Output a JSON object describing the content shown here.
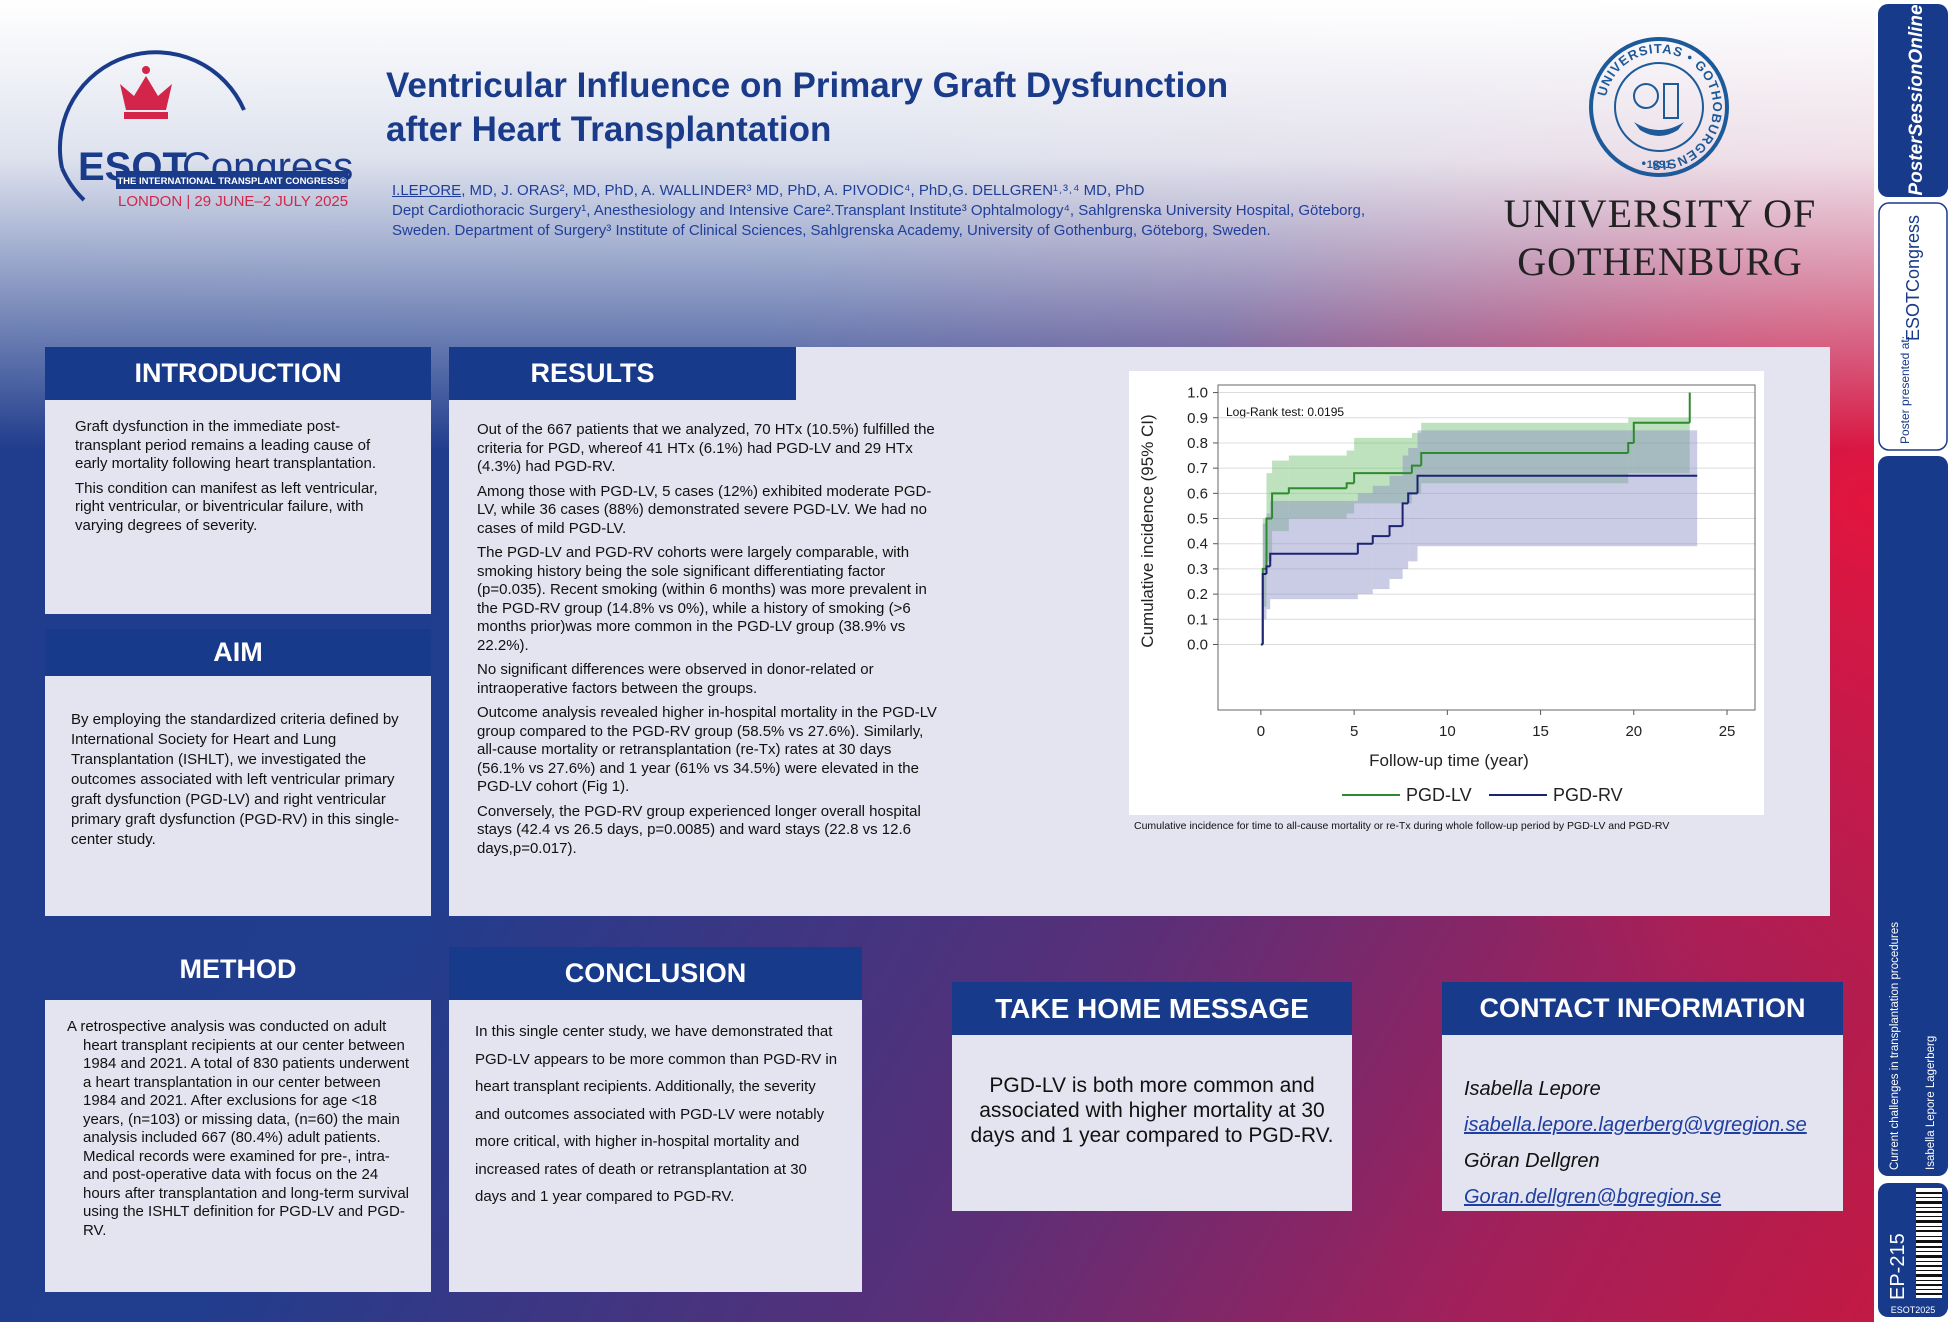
{
  "header": {
    "title_lines": [
      "Ventricular Influence on Primary Graft Dysfunction",
      "after Heart Transplantation"
    ],
    "author_first": "I.LEPORE",
    "authors_rest": ", MD, J. ORAS², MD, PhD, A. WALLINDER³ MD, PhD, A. PIVODIC⁴, PhD,G. DELLGREN¹˒³˒⁴ MD, PhD",
    "affiliations": [
      "Dept Cardiothoracic Surgery¹, Anesthesiology and Intensive Care².Transplant Institute³ Ophtalmology⁴, Sahlgrenska University Hospital, Göteborg,",
      "Sweden. Department of Surgery³ Institute of Clinical Sciences, Sahlgrenska Academy, University of Gothenburg, Göteborg, Sweden."
    ]
  },
  "esot_logo": {
    "esot": "ESOT",
    "congress": "Congress",
    "tagline": "THE INTERNATIONAL TRANSPLANT CONGRESS®",
    "location": "LONDON | 29 JUNE–2 JULY 2025"
  },
  "university": {
    "seal_text": "UNIVERSITAS • GOTHOBURGENSIS •",
    "seal_year": "1891",
    "name_lines": [
      "UNIVERSITY OF",
      "GOTHENBURG"
    ]
  },
  "introduction": {
    "title": "INTRODUCTION",
    "paragraphs": [
      "Graft dysfunction in the immediate post-transplant period remains a leading cause of early mortality following heart transplantation.",
      "This condition can manifest as left ventricular, right ventricular, or biventricular failure, with varying degrees of severity."
    ]
  },
  "aim": {
    "title": "AIM",
    "paragraphs": [
      "By employing the standardized criteria defined by International Society for Heart and Lung Transplantation (ISHLT), we investigated the outcomes associated with left ventricular primary graft dysfunction (PGD-LV) and right ventricular primary graft dysfunction (PGD-RV) in this single-center study."
    ]
  },
  "results": {
    "title": "RESULTS",
    "paragraphs": [
      "Out of the 667 patients that we analyzed, 70 HTx (10.5%) fulfilled the criteria for PGD, whereof 41 HTx (6.1%) had PGD-LV and 29 HTx (4.3%) had PGD-RV.",
      "Among those with PGD-LV, 5 cases (12%) exhibited moderate PGD-LV, while 36 cases (88%) demonstrated severe PGD-LV. We had no cases of mild PGD-LV.",
      "The PGD-LV and PGD-RV cohorts were largely comparable, with smoking history being the sole significant differentiating factor (p=0.035). Recent smoking (within 6 months) was more prevalent in the PGD-RV group (14.8% vs 0%), while a history of smoking (>6 months prior)was more common in the PGD-LV group (38.9% vs 22.2%).",
      "No significant differences were observed in donor-related or intraoperative factors between the groups.",
      "Outcome analysis revealed higher in-hospital mortality in the PGD-LV group compared to the PGD-RV group (58.5% vs 27.6%). Similarly, all-cause mortality or retransplantation (re-Tx) rates at 30 days (56.1% vs 27.6%) and 1 year (61% vs 34.5%) were elevated in the PGD-LV cohort (Fig 1).",
      "Conversely, the PGD-RV group experienced longer overall hospital stays (42.4 vs 26.5 days, p=0.0085) and ward stays (22.8 vs 12.6 days,p=0.017)."
    ],
    "caption": "Cumulative incidence for time to all-cause mortality or re-Tx during whole follow-up period by PGD-LV and PGD-RV"
  },
  "method": {
    "title": "METHOD",
    "paragraphs": [
      "A retrospective analysis was conducted on adult heart transplant recipients at our center between 1984 and 2021. A total of 830 patients underwent a heart transplantation in our center between 1984 and 2021. After exclusions for age <18 years, (n=103) or missing data, (n=60) the main analysis included 667 (80.4%) adult patients. Medical records were examined for pre-, intra-and post-operative data with focus on the 24 hours after transplantation and long-term survival using the ISHLT definition for PGD-LV and PGD-RV."
    ]
  },
  "conclusion": {
    "title": "CONCLUSION",
    "paragraphs": [
      "In this single center study, we have demonstrated that PGD-LV appears to be more common than PGD-RV in heart transplant recipients. Additionally, the severity and outcomes associated with PGD-LV were notably more critical, with higher in-hospital mortality and increased rates of death or retransplantation at 30 days and 1 year compared to PGD-RV."
    ]
  },
  "take_home": {
    "title": "TAKE HOME MESSAGE",
    "text": "PGD-LV is both more common and associated with higher mortality at 30 days and 1 year compared to PGD-RV."
  },
  "contact": {
    "title": "CONTACT INFORMATION",
    "lines": [
      "Isabella Lepore",
      "isabella.lepore.lagerberg@vgregion.se",
      "Göran Dellgren",
      "Goran.dellgren@bgregion.se"
    ]
  },
  "sidebar": {
    "brand": "PosterSessionOnline",
    "presented": "Poster presented at:",
    "congress": "ESOTCongress",
    "topic": "Current challenges in transplantation procedures",
    "presenter": "Isabella Lepore Lagerberg",
    "code": "EP-215",
    "event": "ESOT2025"
  },
  "chart_data": {
    "type": "step",
    "annotation": "Log-Rank test: 0.0195",
    "x_label": "Follow-up time (year)",
    "y_label": "Cumulative incidence (95% CI)",
    "xlim": [
      -2.3,
      26.5
    ],
    "ylim": [
      -0.26,
      1.03
    ],
    "xticks": [
      0,
      5,
      10,
      15,
      20,
      25
    ],
    "yticks": [
      {
        "value": 0,
        "label": "0.0"
      },
      0.1,
      0.2,
      0.3,
      0.4,
      0.5,
      0.6,
      0.7,
      0.8,
      0.9,
      {
        "value": 1,
        "label": "1.0"
      }
    ],
    "grid": true,
    "series": [
      {
        "name": "PGD-LV",
        "color": "#2e8a2e",
        "band_color": "#6fbf6f",
        "x": [
          0,
          0.1,
          0.3,
          0.6,
          1.5,
          4.6,
          5,
          8.1,
          8.6,
          19.7,
          20,
          23
        ],
        "values": [
          0,
          0.3,
          0.5,
          0.6,
          0.62,
          0.64,
          0.68,
          0.71,
          0.76,
          0.8,
          0.88,
          1.0
        ],
        "ci_lower": [
          0,
          0.15,
          0.33,
          0.45,
          0.5,
          0.52,
          0.56,
          0.6,
          0.64,
          0.68,
          0.68,
          0.68
        ],
        "ci_upper": [
          0,
          0.5,
          0.68,
          0.73,
          0.75,
          0.77,
          0.82,
          0.84,
          0.88,
          0.9,
          0.9,
          0.9
        ]
      },
      {
        "name": "PGD-RV",
        "color": "#1c2470",
        "band_color": "#8a8cc4",
        "x": [
          0,
          0.1,
          0.3,
          0.5,
          5.2,
          6,
          6.9,
          7.6,
          7.9,
          8.4,
          23.4
        ],
        "values": [
          0,
          0.28,
          0.31,
          0.36,
          0.4,
          0.43,
          0.47,
          0.56,
          0.6,
          0.67,
          0.67
        ],
        "ci_lower": [
          0,
          0.1,
          0.14,
          0.18,
          0.2,
          0.22,
          0.26,
          0.3,
          0.33,
          0.39,
          0.39
        ],
        "ci_upper": [
          0,
          0.48,
          0.52,
          0.57,
          0.6,
          0.63,
          0.67,
          0.75,
          0.78,
          0.85,
          0.85
        ]
      }
    ]
  }
}
